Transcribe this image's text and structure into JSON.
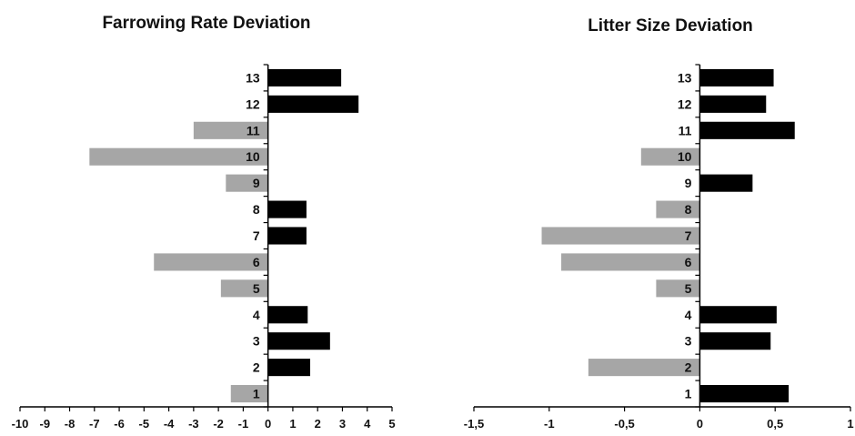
{
  "colors": {
    "positive": "#000000",
    "negative": "#a6a6a6",
    "axis": "#000000"
  },
  "chart_data": [
    {
      "type": "bar",
      "orientation": "horizontal",
      "title": "Farrowing Rate Deviation",
      "categories": [
        "1",
        "2",
        "3",
        "4",
        "5",
        "6",
        "7",
        "8",
        "9",
        "10",
        "11",
        "12",
        "13"
      ],
      "values": [
        -1.5,
        1.7,
        2.5,
        1.6,
        -1.9,
        -4.6,
        1.55,
        1.55,
        -1.7,
        -7.2,
        -3.0,
        3.65,
        2.95
      ],
      "xlim": [
        -10,
        5
      ],
      "xticks": [
        -10,
        -9,
        -8,
        -7,
        -6,
        -5,
        -4,
        -3,
        -2,
        -1,
        0,
        1,
        2,
        3,
        4,
        5
      ],
      "xtick_labels": [
        "-10",
        "-9",
        "-8",
        "-7",
        "-6",
        "-5",
        "-4",
        "-3",
        "-2",
        "-1",
        "0",
        "1",
        "2",
        "3",
        "4",
        "5"
      ],
      "xlabel": "",
      "ylabel": "",
      "grid": false,
      "legend": "none"
    },
    {
      "type": "bar",
      "orientation": "horizontal",
      "title": "Litter Size Deviation",
      "categories": [
        "1",
        "2",
        "3",
        "4",
        "5",
        "6",
        "7",
        "8",
        "9",
        "10",
        "11",
        "12",
        "13"
      ],
      "values": [
        0.59,
        -0.74,
        0.47,
        0.51,
        -0.29,
        -0.92,
        -1.05,
        -0.29,
        0.35,
        -0.39,
        0.63,
        0.44,
        0.49
      ],
      "xlim": [
        -1.5,
        1
      ],
      "xticks": [
        -1.5,
        -1,
        -0.5,
        0,
        0.5,
        1
      ],
      "xtick_labels": [
        "-1,5",
        "-1",
        "-0,5",
        "0",
        "0,5",
        "1"
      ],
      "xlabel": "",
      "ylabel": "",
      "grid": false,
      "legend": "none"
    }
  ]
}
